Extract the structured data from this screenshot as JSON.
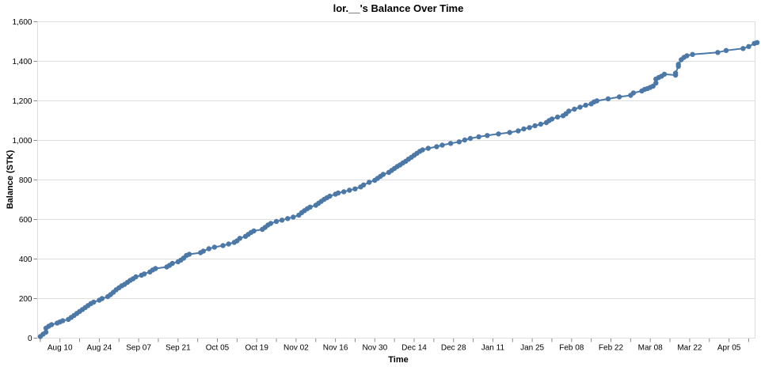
{
  "chart_data": {
    "type": "line",
    "title": "lor.__'s Balance Over Time",
    "xlabel": "Time",
    "ylabel": "Balance (STK)",
    "ylim": [
      0,
      1600
    ],
    "yticks": [
      0,
      200,
      400,
      600,
      800,
      1000,
      1200,
      1400,
      1600
    ],
    "ytick_labels": [
      "0",
      "200",
      "400",
      "600",
      "800",
      "1,000",
      "1,200",
      "1,400",
      "1,600"
    ],
    "xtick_labels": [
      "Aug 10",
      "Aug 24",
      "Sep 07",
      "Sep 21",
      "Oct 05",
      "Oct 19",
      "Nov 02",
      "Nov 16",
      "Nov 30",
      "Dec 14",
      "Dec 28",
      "Jan 11",
      "Jan 25",
      "Feb 08",
      "Feb 22",
      "Mar 08",
      "Mar 22",
      "Apr 05"
    ],
    "grid": true,
    "legend": "none",
    "color": "#4c78a8",
    "series": [
      {
        "name": "Balance",
        "points": [
          [
            "Aug 03",
            8
          ],
          [
            "Aug 04",
            20
          ],
          [
            "Aug 05",
            30
          ],
          [
            "Aug 05",
            50
          ],
          [
            "Aug 06",
            60
          ],
          [
            "Aug 07",
            68
          ],
          [
            "Aug 09",
            76
          ],
          [
            "Aug 10",
            82
          ],
          [
            "Aug 11",
            88
          ],
          [
            "Aug 13",
            95
          ],
          [
            "Aug 14",
            105
          ],
          [
            "Aug 15",
            115
          ],
          [
            "Aug 16",
            125
          ],
          [
            "Aug 17",
            135
          ],
          [
            "Aug 18",
            145
          ],
          [
            "Aug 19",
            155
          ],
          [
            "Aug 20",
            165
          ],
          [
            "Aug 21",
            175
          ],
          [
            "Aug 22",
            182
          ],
          [
            "Aug 24",
            192
          ],
          [
            "Aug 25",
            200
          ],
          [
            "Aug 27",
            210
          ],
          [
            "Aug 28",
            220
          ],
          [
            "Aug 29",
            232
          ],
          [
            "Aug 30",
            245
          ],
          [
            "Aug 31",
            255
          ],
          [
            "Sep 01",
            265
          ],
          [
            "Sep 02",
            272
          ],
          [
            "Sep 03",
            282
          ],
          [
            "Sep 04",
            292
          ],
          [
            "Sep 05",
            300
          ],
          [
            "Sep 06",
            310
          ],
          [
            "Sep 08",
            318
          ],
          [
            "Sep 09",
            325
          ],
          [
            "Sep 11",
            335
          ],
          [
            "Sep 12",
            345
          ],
          [
            "Sep 13",
            352
          ],
          [
            "Sep 17",
            360
          ],
          [
            "Sep 18",
            368
          ],
          [
            "Sep 19",
            378
          ],
          [
            "Sep 21",
            386
          ],
          [
            "Sep 22",
            395
          ],
          [
            "Sep 23",
            405
          ],
          [
            "Sep 24",
            418
          ],
          [
            "Sep 25",
            424
          ],
          [
            "Sep 29",
            432
          ],
          [
            "Sep 30",
            440
          ],
          [
            "Oct 02",
            452
          ],
          [
            "Oct 04",
            460
          ],
          [
            "Oct 07",
            468
          ],
          [
            "Oct 09",
            476
          ],
          [
            "Oct 11",
            484
          ],
          [
            "Oct 12",
            492
          ],
          [
            "Oct 13",
            505
          ],
          [
            "Oct 15",
            515
          ],
          [
            "Oct 16",
            525
          ],
          [
            "Oct 17",
            535
          ],
          [
            "Oct 18",
            542
          ],
          [
            "Oct 21",
            550
          ],
          [
            "Oct 22",
            560
          ],
          [
            "Oct 23",
            572
          ],
          [
            "Oct 24",
            580
          ],
          [
            "Oct 26",
            590
          ],
          [
            "Oct 28",
            597
          ],
          [
            "Oct 30",
            605
          ],
          [
            "Nov 01",
            612
          ],
          [
            "Nov 03",
            622
          ],
          [
            "Nov 04",
            635
          ],
          [
            "Nov 05",
            645
          ],
          [
            "Nov 06",
            655
          ],
          [
            "Nov 07",
            663
          ],
          [
            "Nov 09",
            672
          ],
          [
            "Nov 10",
            682
          ],
          [
            "Nov 11",
            692
          ],
          [
            "Nov 12",
            702
          ],
          [
            "Nov 13",
            710
          ],
          [
            "Nov 14",
            718
          ],
          [
            "Nov 16",
            728
          ],
          [
            "Nov 17",
            734
          ],
          [
            "Nov 19",
            740
          ],
          [
            "Nov 21",
            748
          ],
          [
            "Nov 23",
            755
          ],
          [
            "Nov 25",
            765
          ],
          [
            "Nov 26",
            775
          ],
          [
            "Nov 28",
            788
          ],
          [
            "Nov 30",
            798
          ],
          [
            "Dec 01",
            808
          ],
          [
            "Dec 02",
            818
          ],
          [
            "Dec 03",
            828
          ],
          [
            "Dec 05",
            838
          ],
          [
            "Dec 06",
            848
          ],
          [
            "Dec 07",
            858
          ],
          [
            "Dec 08",
            868
          ],
          [
            "Dec 09",
            876
          ],
          [
            "Dec 10",
            886
          ],
          [
            "Dec 11",
            895
          ],
          [
            "Dec 12",
            905
          ],
          [
            "Dec 13",
            915
          ],
          [
            "Dec 14",
            925
          ],
          [
            "Dec 15",
            935
          ],
          [
            "Dec 16",
            945
          ],
          [
            "Dec 17",
            952
          ],
          [
            "Dec 19",
            960
          ],
          [
            "Dec 22",
            968
          ],
          [
            "Dec 24",
            976
          ],
          [
            "Dec 27",
            985
          ],
          [
            "Dec 30",
            993
          ],
          [
            "Jan 01",
            1002
          ],
          [
            "Jan 03",
            1010
          ],
          [
            "Jan 06",
            1018
          ],
          [
            "Jan 09",
            1025
          ],
          [
            "Jan 13",
            1033
          ],
          [
            "Jan 17",
            1040
          ],
          [
            "Jan 20",
            1048
          ],
          [
            "Jan 22",
            1058
          ],
          [
            "Jan 24",
            1065
          ],
          [
            "Jan 26",
            1074
          ],
          [
            "Jan 28",
            1082
          ],
          [
            "Jan 30",
            1090
          ],
          [
            "Jan 31",
            1100
          ],
          [
            "Feb 01",
            1108
          ],
          [
            "Feb 03",
            1118
          ],
          [
            "Feb 05",
            1125
          ],
          [
            "Feb 06",
            1135
          ],
          [
            "Feb 07",
            1148
          ],
          [
            "Feb 09",
            1158
          ],
          [
            "Feb 11",
            1168
          ],
          [
            "Feb 13",
            1178
          ],
          [
            "Feb 15",
            1185
          ],
          [
            "Feb 16",
            1195
          ],
          [
            "Feb 17",
            1200
          ],
          [
            "Feb 21",
            1210
          ],
          [
            "Feb 25",
            1220
          ],
          [
            "Mar 01",
            1228
          ],
          [
            "Mar 02",
            1240
          ],
          [
            "Mar 05",
            1250
          ],
          [
            "Mar 06",
            1258
          ],
          [
            "Mar 07",
            1262
          ],
          [
            "Mar 08",
            1268
          ],
          [
            "Mar 09",
            1275
          ],
          [
            "Mar 10",
            1290
          ],
          [
            "Mar 10",
            1310
          ],
          [
            "Mar 11",
            1318
          ],
          [
            "Mar 12",
            1325
          ],
          [
            "Mar 13",
            1335
          ],
          [
            "Mar 17",
            1330
          ],
          [
            "Mar 17",
            1340
          ],
          [
            "Mar 18",
            1375
          ],
          [
            "Mar 18",
            1385
          ],
          [
            "Mar 19",
            1408
          ],
          [
            "Mar 20",
            1420
          ],
          [
            "Mar 21",
            1428
          ],
          [
            "Mar 23",
            1435
          ],
          [
            "Apr 01",
            1445
          ],
          [
            "Apr 04",
            1455
          ],
          [
            "Apr 10",
            1465
          ],
          [
            "Apr 12",
            1475
          ],
          [
            "Apr 14",
            1490
          ],
          [
            "Apr 15",
            1495
          ]
        ]
      }
    ]
  }
}
